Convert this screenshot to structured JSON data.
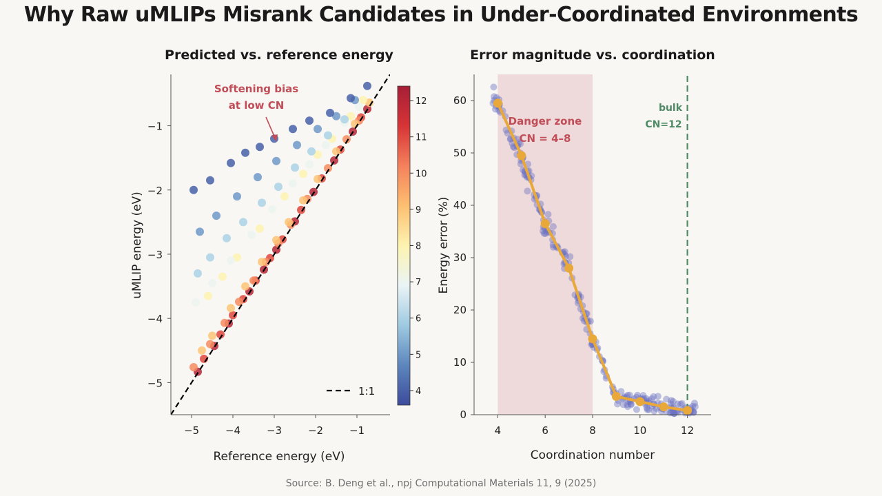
{
  "page": {
    "title": "Why Raw uMLIPs Misrank Candidates in Under-Coordinated Environments",
    "source": "Source: B. Deng et al., npj Computational Materials 11, 9 (2025)"
  },
  "colors": {
    "background": "#f9f7f3",
    "line_color": "#e8a83a",
    "scatter_color": "#6a6fc0",
    "danger_zone_fill": "#e6c2c5",
    "annotation_red": "#c04d57",
    "bulk_line": "#4f8a66",
    "colormap": [
      "#3c4c9c",
      "#5d86bd",
      "#9ecae1",
      "#eaf4f6",
      "#fdf3b0",
      "#fdbf71",
      "#f4815c",
      "#d73436",
      "#a51f36"
    ]
  },
  "chart_data": [
    {
      "type": "scatter",
      "title": "Predicted vs. reference energy",
      "xlabel": "Reference energy (eV)",
      "ylabel": "uMLIP energy (eV)",
      "xlim": [
        -5.5,
        -0.2
      ],
      "ylim": [
        -5.5,
        -0.2
      ],
      "xticks": [
        -5,
        -4,
        -3,
        -2,
        -1
      ],
      "yticks": [
        -5,
        -4,
        -3,
        -2,
        -1
      ],
      "tick_labels": [
        "−5",
        "−4",
        "−3",
        "−2",
        "−1"
      ],
      "legend": {
        "label": "1:1",
        "position": "lower-right"
      },
      "reference_line": {
        "label": "1:1",
        "slope": 1,
        "intercept": 0
      },
      "color_by": "coordination number",
      "colorbar": {
        "min": 3.6,
        "max": 12.4,
        "ticks": [
          4,
          5,
          6,
          7,
          8,
          9,
          10,
          11,
          12
        ]
      },
      "annotation": {
        "text": [
          "Softening bias",
          "at low CN"
        ],
        "arrow_to": [
          -2.95,
          -1.2
        ]
      },
      "point_groups": [
        {
          "cn": 12,
          "x": [
            -4.85,
            -4.45,
            -4.1,
            -3.6,
            -3.25,
            -2.95,
            -2.5,
            -2.05,
            -1.55,
            -1.1,
            -0.75
          ],
          "y": [
            -4.83,
            -4.43,
            -4.08,
            -3.58,
            -3.24,
            -2.93,
            -2.49,
            -2.03,
            -1.54,
            -1.09,
            -0.74
          ]
        },
        {
          "cn": 11,
          "x": [
            -4.7,
            -4.3,
            -4.0,
            -3.75,
            -3.45,
            -3.1,
            -2.8,
            -2.35,
            -1.85,
            -1.4,
            -0.9
          ],
          "y": [
            -4.63,
            -4.25,
            -3.95,
            -3.7,
            -3.41,
            -3.06,
            -2.77,
            -2.31,
            -1.82,
            -1.37,
            -0.87
          ]
        },
        {
          "cn": 10,
          "x": [
            -4.95,
            -4.55,
            -4.2,
            -3.85,
            -3.5,
            -3.2,
            -2.9,
            -2.6,
            -2.2,
            -1.7,
            -1.25,
            -0.95
          ],
          "y": [
            -4.76,
            -4.4,
            -4.07,
            -3.74,
            -3.41,
            -3.12,
            -2.83,
            -2.54,
            -2.14,
            -1.66,
            -1.21,
            -0.92
          ]
        },
        {
          "cn": 9,
          "x": [
            -4.75,
            -4.5,
            -4.05,
            -3.7,
            -3.3,
            -2.95,
            -2.65,
            -2.3,
            -1.95,
            -1.5,
            -1.05,
            -0.7
          ],
          "y": [
            -4.5,
            -4.27,
            -3.84,
            -3.5,
            -3.12,
            -2.78,
            -2.5,
            -2.16,
            -1.83,
            -1.4,
            -0.97,
            -0.64
          ]
        },
        {
          "cn": 8,
          "x": [
            -4.6,
            -4.25,
            -3.9,
            -3.35,
            -2.75,
            -2.3,
            -1.95,
            -1.6,
            -1.15,
            -0.85
          ],
          "y": [
            -3.65,
            -3.35,
            -3.05,
            -2.6,
            -2.1,
            -1.75,
            -1.45,
            -1.2,
            -0.85,
            -0.6
          ]
        },
        {
          "cn": 7,
          "x": [
            -4.9,
            -4.5,
            -4.05,
            -3.55,
            -3.05,
            -2.55,
            -2.15,
            -1.75,
            -1.3,
            -0.95
          ],
          "y": [
            -3.75,
            -3.45,
            -3.1,
            -2.7,
            -2.3,
            -1.9,
            -1.6,
            -1.3,
            -0.95,
            -0.7
          ]
        },
        {
          "cn": 6,
          "x": [
            -4.85,
            -4.55,
            -4.15,
            -3.75,
            -3.3,
            -2.9,
            -2.5,
            -2.1,
            -1.7,
            -1.3
          ],
          "y": [
            -3.3,
            -3.05,
            -2.75,
            -2.5,
            -2.2,
            -1.95,
            -1.65,
            -1.4,
            -1.15,
            -0.9
          ]
        },
        {
          "cn": 5,
          "x": [
            -4.8,
            -4.4,
            -3.9,
            -3.4,
            -2.95,
            -2.45,
            -1.95,
            -1.5,
            -1.05
          ],
          "y": [
            -2.65,
            -2.4,
            -2.1,
            -1.8,
            -1.55,
            -1.3,
            -1.05,
            -0.85,
            -0.6
          ]
        },
        {
          "cn": 4,
          "x": [
            -4.95,
            -4.55,
            -4.05,
            -3.7,
            -3.35,
            -3.0,
            -2.55,
            -2.15,
            -1.65,
            -1.15,
            -0.75
          ],
          "y": [
            -2.0,
            -1.85,
            -1.58,
            -1.42,
            -1.33,
            -1.2,
            -1.05,
            -0.92,
            -0.8,
            -0.57,
            -0.38
          ]
        }
      ]
    },
    {
      "type": "line",
      "title": "Error magnitude vs. coordination",
      "xlabel": "Coordination number",
      "ylabel": "Energy error (%)",
      "xlim": [
        3.0,
        13.0
      ],
      "ylim": [
        0,
        65
      ],
      "xticks": [
        4,
        6,
        8,
        10,
        12
      ],
      "yticks": [
        0,
        10,
        20,
        30,
        40,
        50,
        60
      ],
      "series": [
        {
          "x": [
            4,
            5,
            6,
            7,
            8,
            9,
            10,
            11,
            12
          ],
          "y": [
            59.5,
            49.5,
            36.5,
            28.0,
            14.5,
            3.5,
            2.5,
            1.5,
            0.8
          ]
        }
      ],
      "danger_zone": {
        "x_range": [
          4,
          8
        ],
        "label": [
          "Danger zone",
          "CN = 4–8"
        ]
      },
      "bulk_line": {
        "x": 12,
        "label": [
          "bulk",
          "CN=12"
        ]
      },
      "scatter_note": "jittered per-sample errors around each coordination number"
    }
  ]
}
